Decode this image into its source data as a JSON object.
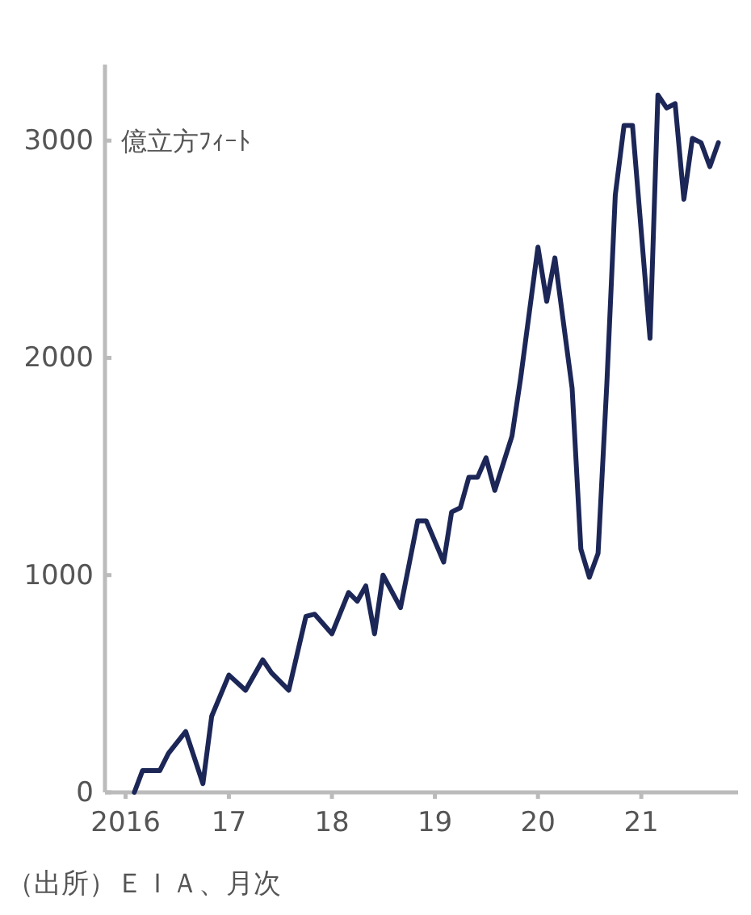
{
  "chart_data": {
    "type": "line",
    "ylabel": "億立方ﾌｨｰﾄ",
    "annotations": [
      "（出所）ＥＩＡ、月次"
    ],
    "x": [
      "2016-02",
      "2016-03",
      "2016-05",
      "2016-06",
      "2016-08",
      "2016-10",
      "2016-11",
      "2017-01",
      "2017-03",
      "2017-05",
      "2017-06",
      "2017-08",
      "2017-10",
      "2017-11",
      "2018-01",
      "2018-03",
      "2018-04",
      "2018-05",
      "2018-06",
      "2018-07",
      "2018-09",
      "2018-11",
      "2018-12",
      "2019-02",
      "2019-03",
      "2019-04",
      "2019-05",
      "2019-06",
      "2019-07",
      "2019-08",
      "2019-10",
      "2019-11",
      "2020-01",
      "2020-02",
      "2020-03",
      "2020-05",
      "2020-06",
      "2020-07",
      "2020-08",
      "2020-09",
      "2020-10",
      "2020-11",
      "2020-12",
      "2021-02",
      "2021-03",
      "2021-04",
      "2021-05",
      "2021-06",
      "2021-07",
      "2021-08",
      "2021-09",
      "2021-10"
    ],
    "series": [
      {
        "color": "#1c2757",
        "values": [
          0,
          100,
          100,
          180,
          280,
          40,
          350,
          540,
          470,
          610,
          550,
          470,
          810,
          820,
          730,
          920,
          880,
          950,
          730,
          1000,
          850,
          1250,
          1250,
          1060,
          1290,
          1310,
          1450,
          1450,
          1540,
          1390,
          1640,
          1910,
          2510,
          2260,
          2460,
          1860,
          1120,
          990,
          1100,
          1880,
          2750,
          3070,
          3070,
          2090,
          3210,
          3150,
          3170,
          2730,
          3010,
          2990,
          2880,
          2990
        ]
      }
    ],
    "xlim": [
      "2015-10-20",
      "2021-12-10"
    ],
    "ylim": [
      0,
      3350
    ],
    "xticks": [
      {
        "value": "2016",
        "label": "2016"
      },
      {
        "value": "2017",
        "label": "17"
      },
      {
        "value": "2018",
        "label": "18"
      },
      {
        "value": "2019",
        "label": "19"
      },
      {
        "value": "2020",
        "label": "20"
      },
      {
        "value": "2021",
        "label": "21"
      }
    ],
    "yticks": [
      0,
      1000,
      2000,
      3000
    ],
    "grid": false,
    "marker": "none",
    "line_style": "solid"
  }
}
